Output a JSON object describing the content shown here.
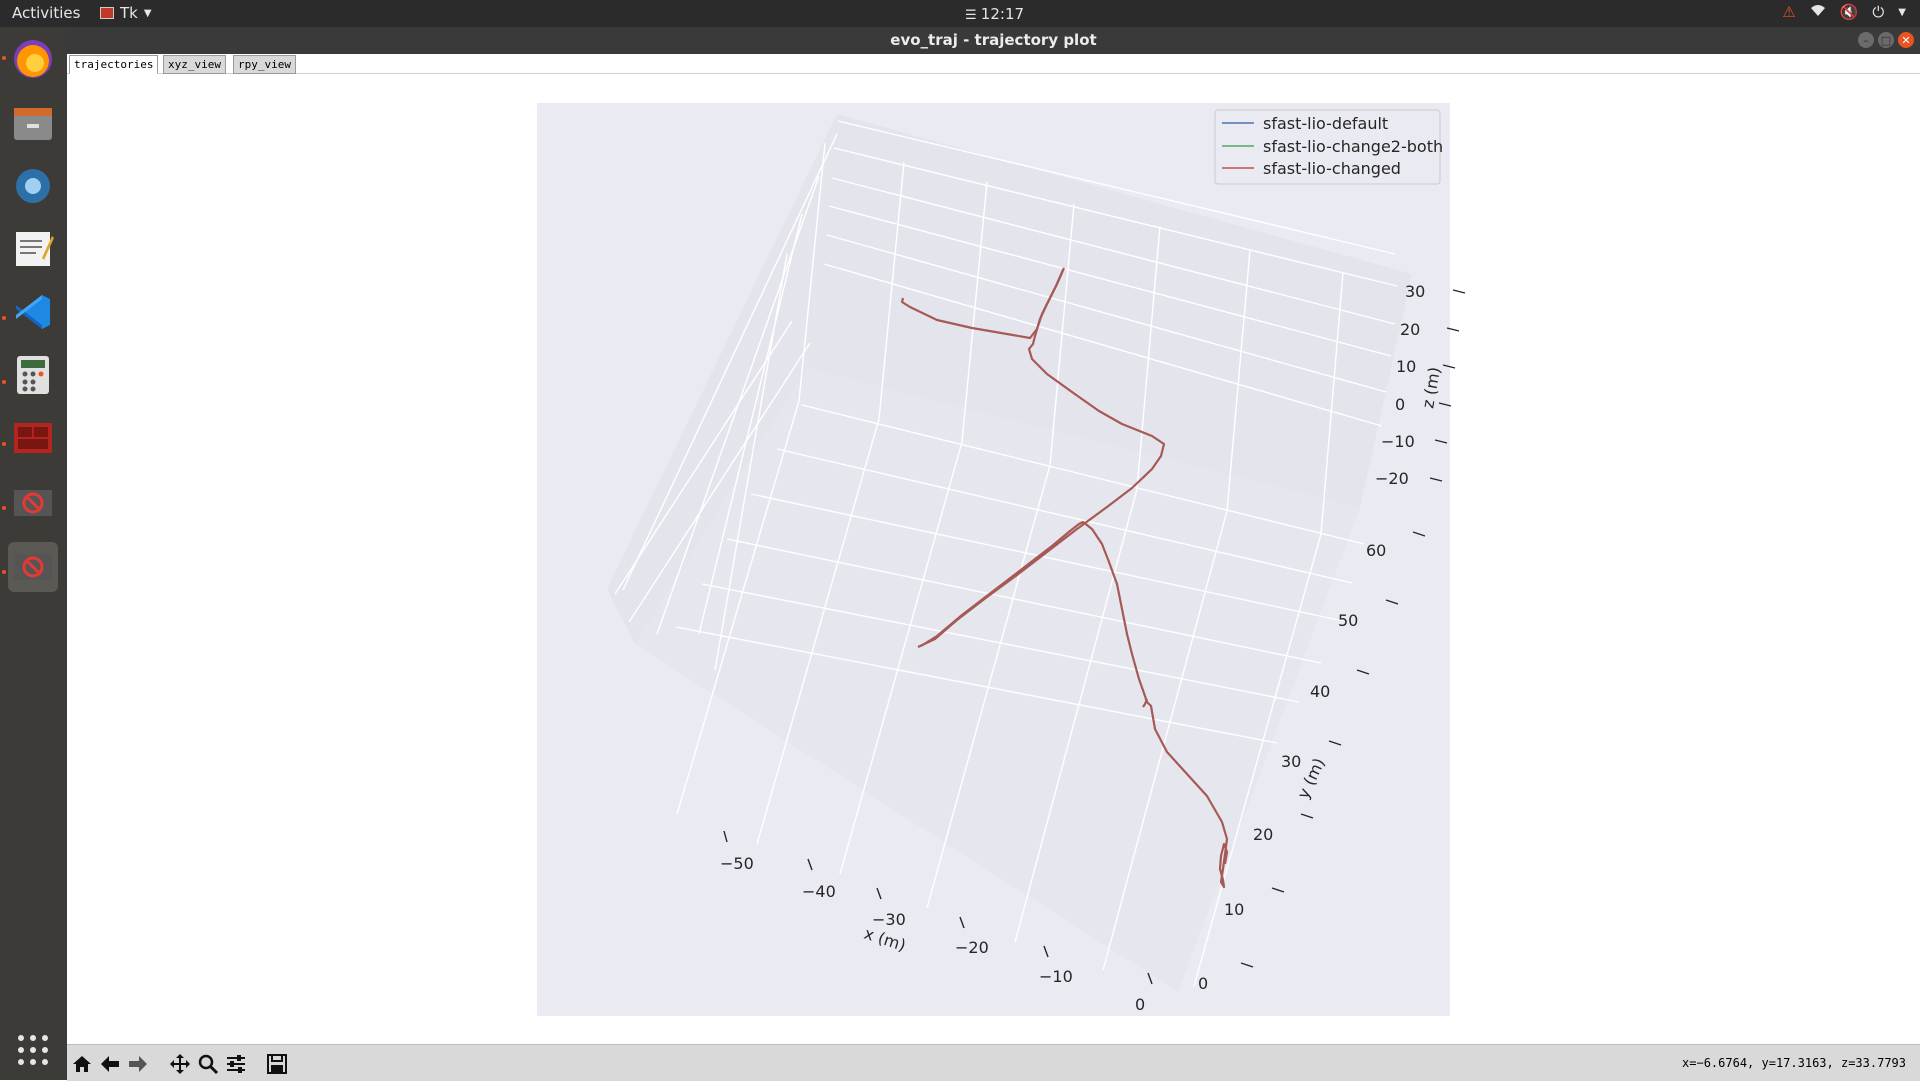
{
  "topbar": {
    "activities": "Activities",
    "app_menu": "Tk",
    "clock": "12:17"
  },
  "window": {
    "title": "evo_traj - trajectory plot"
  },
  "tabs": [
    {
      "label": "trajectories",
      "selected": true
    },
    {
      "label": "xyz_view",
      "selected": false
    },
    {
      "label": "rpy_view",
      "selected": false
    }
  ],
  "dock": {
    "items": [
      "firefox-icon",
      "files-icon",
      "app-icon",
      "text-editor-icon",
      "vscode-icon",
      "calculator-icon",
      "app-icon",
      "blocked-app-icon",
      "blocked-app-icon"
    ],
    "show_apps": "show-applications-icon"
  },
  "plot": {
    "background": "#eaeaf2",
    "legend": [
      {
        "label": "sfast-lio-default",
        "color": "#4c72b0"
      },
      {
        "label": "sfast-lio-change2-both",
        "color": "#55a868"
      },
      {
        "label": "sfast-lio-changed",
        "color": "#c44e52"
      }
    ],
    "x_axis": {
      "label": "x (m)",
      "ticks": [
        "−50",
        "−40",
        "−30",
        "−20",
        "−10",
        "0"
      ]
    },
    "y_axis": {
      "label": "y (m)",
      "ticks": [
        "0",
        "10",
        "20",
        "30",
        "40",
        "50",
        "60"
      ]
    },
    "z_axis": {
      "label": "z (m)",
      "ticks": [
        "30",
        "20",
        "10",
        "0",
        "−10",
        "−20"
      ]
    },
    "trajectory_color": "#a55a55"
  },
  "chart_data": {
    "type": "line",
    "title": "",
    "xlabel": "x (m)",
    "ylabel": "y (m)",
    "zlabel": "z (m)",
    "xlim": [
      -55,
      3
    ],
    "ylim": [
      0,
      65
    ],
    "zlim": [
      -25,
      35
    ],
    "legend_position": "top-right",
    "grid": true,
    "series": [
      {
        "name": "sfast-lio-default",
        "color": "#4c72b0"
      },
      {
        "name": "sfast-lio-change2-both",
        "color": "#55a868"
      },
      {
        "name": "sfast-lio-changed",
        "color": "#c44e52"
      }
    ]
  },
  "toolbar": {
    "tools": [
      "home-icon",
      "back-icon",
      "forward-icon",
      "pan-icon",
      "zoom-icon",
      "configure-icon",
      "save-icon"
    ],
    "coords": "x=−6.6764, y=17.3163, z=33.7793"
  }
}
